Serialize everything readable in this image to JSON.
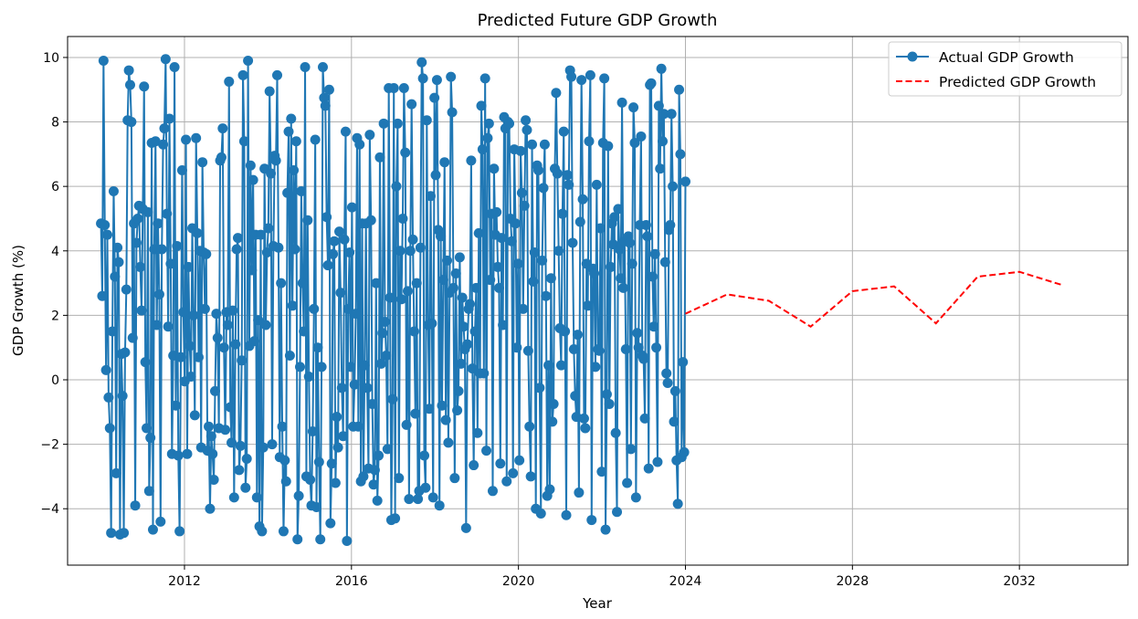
{
  "chart_data": {
    "type": "line",
    "title": "Predicted Future GDP Growth",
    "xlabel": "Year",
    "ylabel": "GDP Growth (%)",
    "xlim": [
      2009.2,
      2034.6
    ],
    "ylim": [
      -5.75,
      10.65
    ],
    "x_ticks": [
      2012,
      2016,
      2020,
      2024,
      2028,
      2032
    ],
    "y_ticks": [
      -4,
      -2,
      0,
      2,
      4,
      6,
      8,
      10
    ],
    "grid": true,
    "legend_position": "top-right",
    "series": [
      {
        "name": "Actual GDP Growth",
        "color": "#1f77b4",
        "style": "solid-line-with-circle-markers",
        "x_start": 2010.0,
        "x_end": 2024.0,
        "values": [
          4.85,
          2.6,
          9.9,
          4.8,
          0.3,
          4.5,
          -0.55,
          -1.5,
          -4.75,
          1.5,
          5.85,
          3.2,
          -2.9,
          4.1,
          3.65,
          -4.8,
          0.8,
          -0.5,
          -4.75,
          0.85,
          2.8,
          8.05,
          9.6,
          9.15,
          8.0,
          1.3,
          4.85,
          -3.9,
          4.25,
          5.0,
          5.4,
          3.5,
          2.15,
          5.3,
          9.1,
          0.55,
          -1.5,
          5.2,
          -3.45,
          -1.8,
          7.35,
          -4.65,
          4.05,
          7.4,
          1.7,
          4.85,
          2.65,
          -4.4,
          4.05,
          7.3,
          7.8,
          9.95,
          5.15,
          1.65,
          8.1,
          3.6,
          -2.3,
          0.75,
          9.7,
          -0.8,
          4.15,
          -2.35,
          -4.7,
          0.7,
          6.5,
          2.1,
          -0.05,
          7.45,
          -2.3,
          3.5,
          1.05,
          0.1,
          4.7,
          2.0,
          -1.1,
          7.5,
          4.55,
          0.7,
          4.0,
          -2.1,
          6.75,
          3.95,
          2.2,
          3.9,
          -2.2,
          -1.45,
          -4.0,
          -1.75,
          -2.3,
          -3.1,
          -0.35,
          2.05,
          1.3,
          -1.5,
          6.8,
          6.9,
          7.8,
          1.0,
          -1.55,
          2.1,
          1.7,
          9.25,
          -0.85,
          -1.95,
          2.15,
          -3.65,
          1.1,
          4.05,
          4.4,
          -2.8,
          -2.05,
          0.6,
          9.45,
          7.4,
          -3.35,
          -2.45,
          9.9,
          1.05,
          6.65,
          3.4,
          6.2,
          1.2,
          4.5,
          -3.65,
          1.85,
          -4.55,
          4.5,
          -4.7,
          -2.1,
          6.55,
          1.7,
          3.95,
          4.7,
          8.95,
          6.4,
          -2.0,
          4.15,
          6.95,
          6.8,
          9.45,
          4.1,
          -2.4,
          3.0,
          -1.45,
          -4.7,
          -2.5,
          -3.15,
          5.8,
          7.7,
          0.75,
          8.1,
          2.3,
          6.5,
          4.05,
          7.4,
          -4.95,
          -3.6,
          0.4,
          5.85,
          3.0,
          1.5,
          9.7,
          -3.0,
          4.95,
          0.1,
          -3.1,
          -3.9,
          -1.6,
          2.2,
          7.45,
          -3.95,
          1.0,
          -2.55,
          -4.95,
          0.4,
          9.7,
          8.75,
          8.5,
          5.05,
          3.55,
          9.0,
          -4.45,
          -2.6,
          3.9,
          4.3,
          -3.2,
          -1.15,
          -2.1,
          4.6,
          2.7,
          -0.25,
          -1.75,
          4.35,
          7.7,
          -5.0,
          2.2,
          3.95,
          0.4,
          5.35,
          -1.45,
          -0.15,
          2.05,
          7.5,
          -1.45,
          7.3,
          -3.15,
          4.85,
          -3.0,
          0.45,
          4.85,
          -0.25,
          -2.75,
          7.6,
          4.95,
          -0.75,
          -3.25,
          -2.8,
          3.0,
          -3.75,
          -2.35,
          6.9,
          0.5,
          1.45,
          7.95,
          1.8,
          0.75,
          -2.15,
          9.05,
          2.55,
          -4.35,
          -0.6,
          9.05,
          -4.3,
          6.0,
          7.95,
          -3.05,
          4.0,
          2.5,
          5.0,
          9.05,
          7.05,
          -1.4,
          2.75,
          -3.7,
          4.0,
          8.55,
          4.35,
          1.5,
          -1.05,
          3.0,
          -3.7,
          -3.45,
          4.1,
          9.85,
          9.35,
          -2.35,
          -3.35,
          8.05,
          1.7,
          -0.9,
          5.7,
          1.75,
          -3.65,
          8.75,
          6.35,
          9.3,
          4.65,
          -3.9,
          4.45,
          -0.8,
          3.1,
          6.75,
          -1.25,
          3.7,
          -1.95,
          2.7,
          9.4,
          8.3,
          2.85,
          -3.05,
          3.3,
          -0.95,
          -0.35,
          3.8,
          0.5,
          2.55,
          1.65,
          0.95,
          -4.6,
          1.1,
          2.2,
          2.35,
          6.8,
          0.35,
          -2.65,
          1.5,
          2.85,
          -1.65,
          4.55,
          0.2,
          8.5,
          7.15,
          0.2,
          9.35,
          -2.2,
          7.5,
          7.95,
          3.1,
          5.15,
          -3.45,
          6.55,
          4.5,
          5.2,
          3.5,
          2.85,
          -2.6,
          4.4,
          1.7,
          8.15,
          7.8,
          -3.15,
          8.0,
          7.95,
          5.0,
          4.3,
          -2.9,
          7.15,
          4.85,
          1.0,
          3.6,
          -2.5,
          7.1,
          5.8,
          2.2,
          5.4,
          8.05,
          7.75,
          0.9,
          -1.45,
          -3.0,
          7.3,
          3.05,
          3.95,
          -4.0,
          6.65,
          6.5,
          -0.25,
          -4.15,
          3.7,
          5.95,
          7.3,
          2.6,
          -3.6,
          0.45,
          -3.4,
          3.15,
          -1.3,
          -0.75,
          6.55,
          8.9,
          6.4,
          4.0,
          1.6,
          0.45,
          5.15,
          7.7,
          1.5,
          -4.2,
          6.35,
          6.05,
          9.6,
          9.4,
          4.25,
          0.95,
          -0.5,
          -1.15,
          1.4,
          -3.5,
          4.9,
          9.3,
          5.6,
          -1.2,
          -1.5,
          3.6,
          2.3,
          7.4,
          9.45,
          -4.35,
          3.45,
          3.3,
          0.4,
          6.05,
          0.95,
          0.9,
          4.7,
          -2.85,
          7.35,
          9.35,
          -4.65,
          -0.45,
          7.25,
          -0.75,
          3.5,
          4.85,
          4.2,
          5.05,
          -1.65,
          -4.1,
          5.3,
          4.05,
          3.15,
          8.6,
          2.85,
          4.3,
          0.95,
          -3.2,
          4.45,
          4.25,
          -2.15,
          3.6,
          8.45,
          7.35,
          -3.65,
          1.45,
          1.0,
          4.8,
          7.55,
          0.75,
          0.65,
          -1.2,
          4.8,
          4.45,
          -2.75,
          9.15,
          9.2,
          3.2,
          1.65,
          3.9,
          1.0,
          -2.55,
          8.5,
          6.55,
          9.65,
          7.4,
          8.25,
          3.65,
          0.2,
          -0.1,
          4.65,
          4.8,
          8.25,
          6.0,
          -1.3,
          -0.35,
          -2.5,
          -3.85,
          9.0,
          7.0,
          -2.4,
          0.55,
          -2.25,
          6.15
        ]
      },
      {
        "name": "Predicted GDP Growth",
        "color": "#ff0000",
        "style": "dashed-line",
        "x": [
          2024,
          2025,
          2026,
          2027,
          2028,
          2029,
          2030,
          2031,
          2032,
          2033
        ],
        "values": [
          2.05,
          2.65,
          2.45,
          1.65,
          2.75,
          2.9,
          1.75,
          3.2,
          3.35,
          2.95
        ]
      }
    ]
  }
}
